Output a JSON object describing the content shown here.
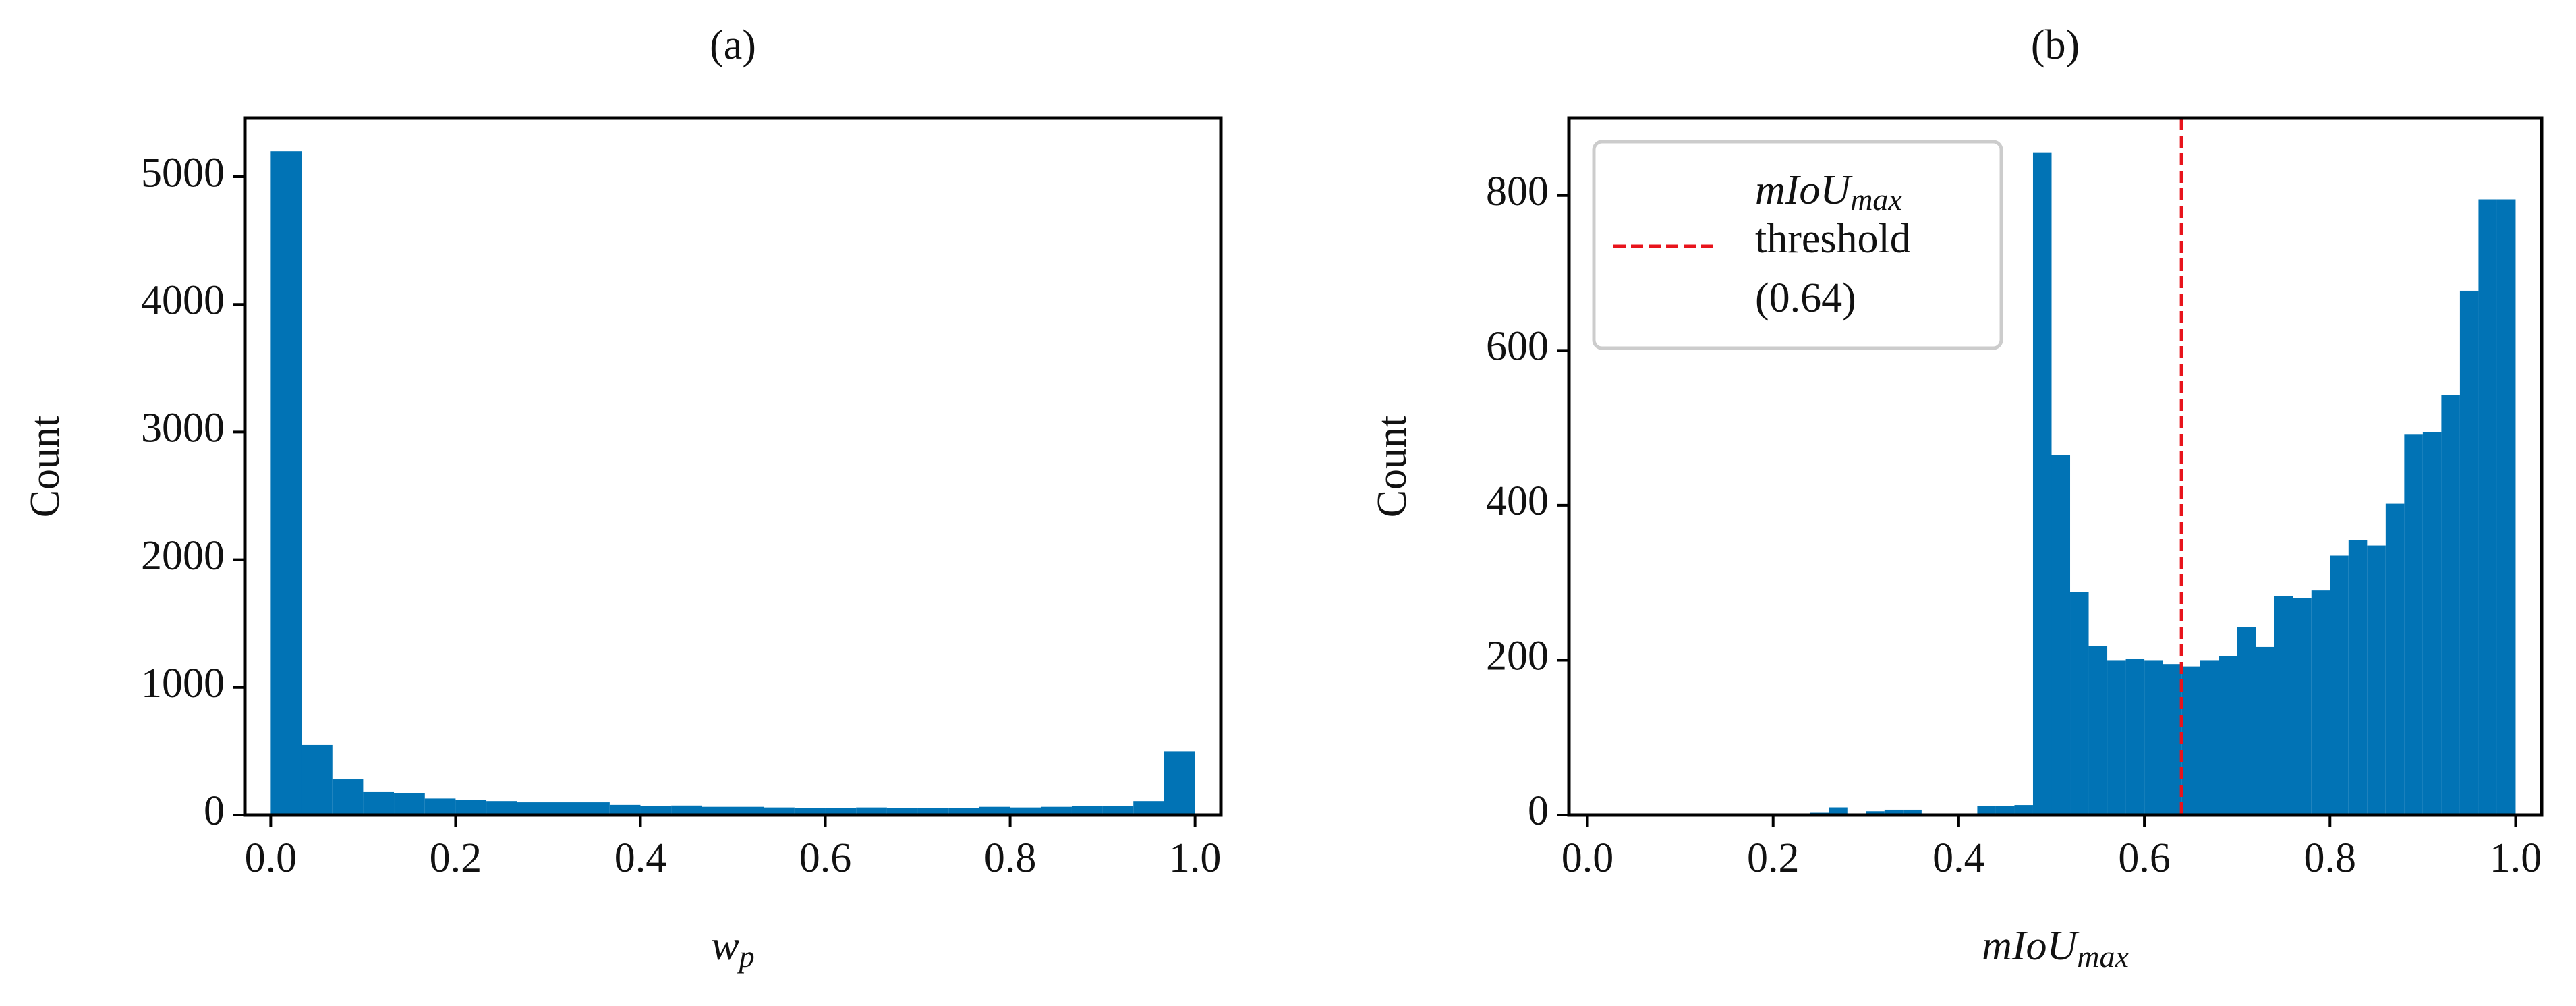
{
  "chart_data": [
    {
      "type": "histogram",
      "title": "(a)",
      "xlabel": [
        "w",
        "p"
      ],
      "ylabel": "Count",
      "color": "#0173b5",
      "bins": [
        0,
        0.0333,
        0.0667,
        0.1,
        0.1333,
        0.1667,
        0.2,
        0.2333,
        0.2667,
        0.3,
        0.3333,
        0.3667,
        0.4,
        0.4333,
        0.4667,
        0.5,
        0.5333,
        0.5667,
        0.6,
        0.6333,
        0.6667,
        0.7,
        0.7333,
        0.7667,
        0.8,
        0.8333,
        0.8667,
        0.9,
        0.9333,
        0.9667,
        1
      ],
      "values": [
        5200,
        550,
        280,
        180,
        170,
        130,
        120,
        110,
        100,
        100,
        100,
        80,
        70,
        75,
        65,
        65,
        60,
        55,
        55,
        60,
        55,
        55,
        55,
        65,
        60,
        65,
        70,
        70,
        110,
        500
      ],
      "xlim": [
        -0.028,
        1.028
      ],
      "ylim": [
        0,
        5460
      ],
      "xticks": [
        {
          "value": 0,
          "label": "0.0"
        },
        0.2,
        0.4,
        0.6,
        0.8,
        {
          "value": 1,
          "label": "1.0"
        }
      ],
      "yticks": [
        0,
        1000,
        2000,
        3000,
        4000,
        5000
      ]
    },
    {
      "type": "histogram",
      "title": "(b)",
      "xlabel": [
        "mIoU",
        "max"
      ],
      "ylabel": "Count",
      "color": "#0173b5",
      "bins": [
        0,
        0.02,
        0.04,
        0.06,
        0.08,
        0.1,
        0.12,
        0.14,
        0.16,
        0.18,
        0.2,
        0.22,
        0.24,
        0.26,
        0.28,
        0.3,
        0.32,
        0.34,
        0.36,
        0.38,
        0.4,
        0.42,
        0.44,
        0.46,
        0.48,
        0.5,
        0.52,
        0.54,
        0.56,
        0.58,
        0.6,
        0.62,
        0.64,
        0.66,
        0.68,
        0.7,
        0.72,
        0.74,
        0.76,
        0.78,
        0.8,
        0.82,
        0.84,
        0.86,
        0.88,
        0.9,
        0.92,
        0.94,
        0.96,
        0.98,
        1
      ],
      "values": [
        0,
        0,
        0,
        0,
        0,
        0,
        0,
        0,
        0,
        0,
        0,
        0,
        3,
        10,
        2,
        5,
        7,
        7,
        2,
        0,
        0,
        12,
        12,
        13,
        855,
        465,
        288,
        218,
        200,
        202,
        200,
        195,
        192,
        200,
        205,
        243,
        217,
        283,
        280,
        290,
        335,
        355,
        348,
        402,
        492,
        494,
        542,
        677,
        795,
        795
      ],
      "xlim": [
        -0.02,
        1.028
      ],
      "ylim": [
        0,
        900
      ],
      "xticks": [
        {
          "value": 0,
          "label": "0.0"
        },
        0.2,
        0.4,
        0.6,
        0.8,
        {
          "value": 1,
          "label": "1.0"
        }
      ],
      "yticks": [
        0,
        200,
        400,
        600,
        800
      ],
      "threshold": 0.64,
      "threshold_color": "#e8141c",
      "legend": {
        "loc": "upper left",
        "label": [
          "mIoU",
          "max",
          "threshold",
          "(0.64)"
        ]
      }
    }
  ]
}
